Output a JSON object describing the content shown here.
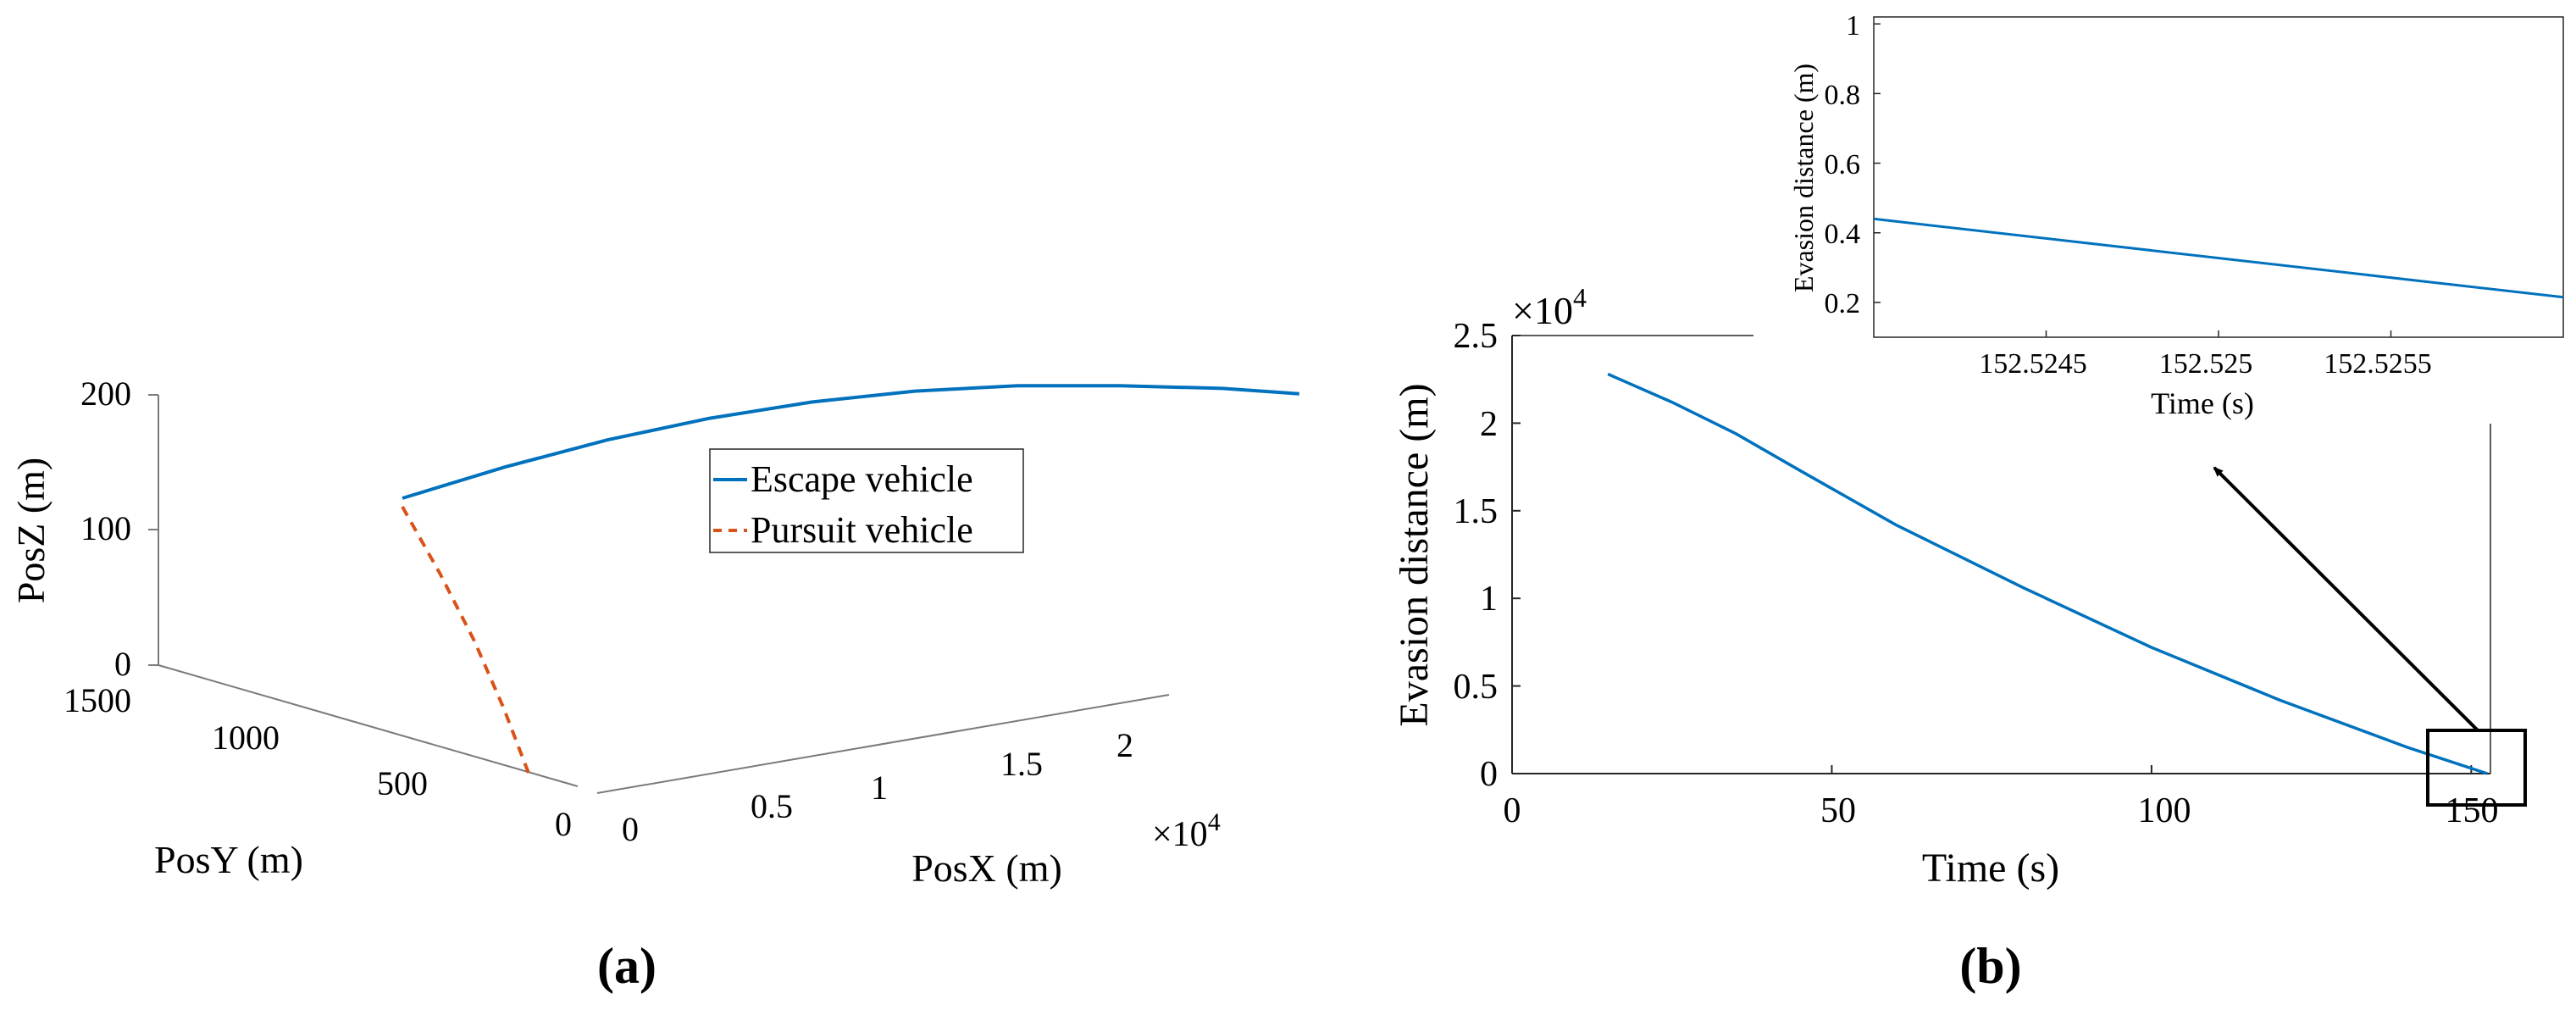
{
  "colors": {
    "escape": "#0072bd",
    "pursuit": "#d95319",
    "axis": "#262626",
    "grid_axis": "#7a7a7a"
  },
  "panel_a": {
    "label": "(a)",
    "xlabel": "PosX (m)",
    "ylabel": "PosY (m)",
    "zlabel": "PosZ (m)",
    "x_multiplier": "×10",
    "x_exponent": "4",
    "x_ticks": [
      "0",
      "0.5",
      "1",
      "1.5",
      "2"
    ],
    "y_ticks": [
      "1500",
      "1000",
      "500",
      "0"
    ],
    "z_ticks": [
      "200",
      "100",
      "0"
    ],
    "legend": [
      "Escape vehicle",
      "Pursuit vehicle"
    ]
  },
  "panel_b": {
    "label": "(b)",
    "xlabel": "Time (s)",
    "ylabel": "Evasion distance (m)",
    "y_multiplier": "×10",
    "y_exponent": "4",
    "x_ticks": [
      "0",
      "50",
      "100",
      "150"
    ],
    "y_ticks": [
      "2.5",
      "2",
      "1.5",
      "1",
      "0.5",
      "0"
    ],
    "inset": {
      "xlabel": "Time (s)",
      "ylabel": "Evasion distance (m)",
      "x_ticks": [
        "152.5245",
        "152.525",
        "152.5255"
      ],
      "y_ticks": [
        "1",
        "0.8",
        "0.6",
        "0.4",
        "0.2"
      ]
    }
  },
  "chart_data": [
    {
      "type": "line",
      "projection": "3d",
      "xlabel": "PosX (m)",
      "ylabel": "PosY (m)",
      "zlabel": "PosZ (m)",
      "xlim": [
        0,
        22000
      ],
      "ylim": [
        0,
        1500
      ],
      "zlim": [
        0,
        200
      ],
      "legend_position": "inside-right",
      "series": [
        {
          "name": "Escape vehicle",
          "style": "solid",
          "points": [
            {
              "x": 0,
              "y": 0,
              "z": 95
            },
            {
              "x": 2000,
              "y": 0,
              "z": 118
            },
            {
              "x": 4000,
              "y": 0,
              "z": 138
            },
            {
              "x": 6000,
              "y": 0,
              "z": 154
            },
            {
              "x": 8000,
              "y": 0,
              "z": 166
            },
            {
              "x": 10000,
              "y": 0,
              "z": 174
            },
            {
              "x": 12000,
              "y": 0,
              "z": 178
            },
            {
              "x": 14000,
              "y": 0,
              "z": 178
            },
            {
              "x": 16000,
              "y": 0,
              "z": 176
            },
            {
              "x": 17500,
              "y": 0,
              "z": 172
            }
          ]
        },
        {
          "name": "Pursuit vehicle",
          "style": "dashed",
          "points": [
            {
              "x": 0,
              "y": 0,
              "z": 95
            },
            {
              "x": 0,
              "y": 0,
              "z": 70
            },
            {
              "x": 0,
              "y": 0,
              "z": 45
            },
            {
              "x": 0,
              "y": 0,
              "z": 20
            },
            {
              "x": 0,
              "y": 0,
              "z": 0
            }
          ]
        }
      ]
    },
    {
      "type": "line",
      "xlabel": "Time (s)",
      "ylabel": "Evasion distance (m)",
      "xlim": [
        0,
        150
      ],
      "ylim": [
        0,
        25000
      ],
      "series": [
        {
          "name": "",
          "x": [
            15,
            25,
            35,
            45,
            60,
            80,
            100,
            120,
            140,
            152.5
          ],
          "y": [
            22800,
            21200,
            19400,
            17300,
            14200,
            10600,
            7200,
            4200,
            1500,
            0
          ]
        }
      ]
    },
    {
      "type": "line",
      "xlabel": "Time (s)",
      "ylabel": "Evasion distance (m)",
      "xlim": [
        152.524,
        152.526
      ],
      "ylim": [
        0.1,
        1.0
      ],
      "series": [
        {
          "name": "",
          "x": [
            152.524,
            152.526
          ],
          "y": [
            0.44,
            0.215
          ]
        }
      ]
    }
  ]
}
